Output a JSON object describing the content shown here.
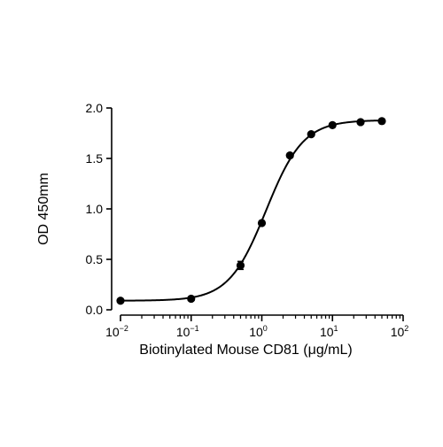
{
  "chart_data": {
    "type": "scatter",
    "title": "",
    "xlabel": "Biotinylated Mouse CD81 (μg/mL)",
    "ylabel": "OD 450mm",
    "x_scale": "log",
    "xlim": [
      0.01,
      100
    ],
    "ylim": [
      0,
      2
    ],
    "grid": false,
    "legend": "none",
    "x_ticks": [
      {
        "value": 0.01,
        "base": "10",
        "exp": "-2"
      },
      {
        "value": 0.1,
        "base": "10",
        "exp": "-1"
      },
      {
        "value": 1,
        "base": "10",
        "exp": "0"
      },
      {
        "value": 10,
        "base": "10",
        "exp": "1"
      },
      {
        "value": 100,
        "base": "10",
        "exp": "2"
      }
    ],
    "y_ticks": [
      {
        "value": 0,
        "label": "0.0"
      },
      {
        "value": 0.5,
        "label": "0.5"
      },
      {
        "value": 1,
        "label": "1.0"
      },
      {
        "value": 1.5,
        "label": "1.5"
      },
      {
        "value": 2,
        "label": "2.0"
      }
    ],
    "series": [
      {
        "x": [
          0.01,
          0.1,
          0.5,
          1,
          2.5,
          5,
          10,
          25,
          50
        ],
        "y": [
          0.09,
          0.11,
          0.44,
          0.86,
          1.53,
          1.74,
          1.83,
          1.86,
          1.87
        ],
        "y_err": [
          0.01,
          0.01,
          0.04,
          0.02,
          0.02,
          0.01,
          0.01,
          0.01,
          0.01
        ]
      }
    ],
    "fit": {
      "model": "4PL",
      "bottom": 0.09,
      "top": 1.88,
      "ec50": 1.15,
      "hill": 1.65
    },
    "colors": {
      "marker": "#000000",
      "line": "#000000",
      "axis": "#000000"
    }
  }
}
